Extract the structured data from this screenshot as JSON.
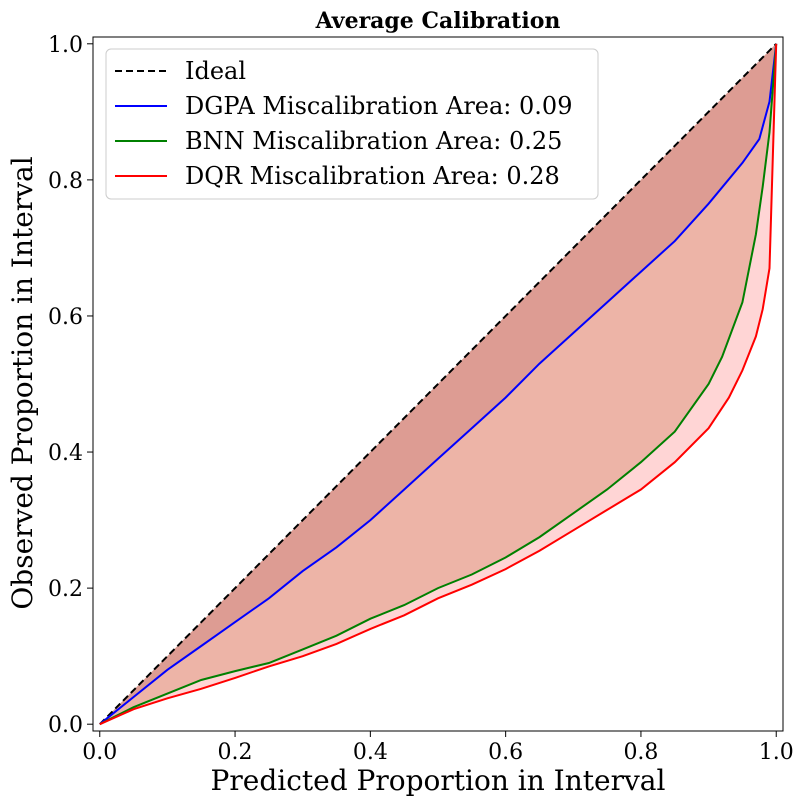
{
  "chart_data": {
    "type": "line",
    "title": "Average Calibration",
    "xlabel": "Predicted Proportion in Interval",
    "ylabel": "Observed Proportion in Interval",
    "xlim": [
      -0.01,
      1.01
    ],
    "ylim": [
      -0.01,
      1.01
    ],
    "xticks": [
      0.0,
      0.2,
      0.4,
      0.6,
      0.8,
      1.0
    ],
    "yticks": [
      0.0,
      0.2,
      0.4,
      0.6,
      0.8,
      1.0
    ],
    "tick_labels": [
      "0.0",
      "0.2",
      "0.4",
      "0.6",
      "0.8",
      "1.0"
    ],
    "grid": false,
    "legend_position": "top-left",
    "fill_between_ideal": true,
    "series": [
      {
        "name": "Ideal",
        "legend": "Ideal",
        "color": "#000000",
        "dash": true,
        "fill": "",
        "x": [
          0.0,
          1.0
        ],
        "y": [
          0.0,
          1.0
        ]
      },
      {
        "name": "DGPA",
        "legend": "DGPA Miscalibration Area: 0.09",
        "color": "#0000ff",
        "dash": false,
        "fill": "#6a2a4c",
        "x": [
          0,
          0.05,
          0.1,
          0.15,
          0.2,
          0.25,
          0.3,
          0.35,
          0.4,
          0.45,
          0.5,
          0.55,
          0.6,
          0.65,
          0.7,
          0.75,
          0.8,
          0.85,
          0.9,
          0.95,
          0.975,
          0.99,
          1.0
        ],
        "y": [
          0,
          0.04,
          0.08,
          0.115,
          0.15,
          0.185,
          0.225,
          0.26,
          0.3,
          0.345,
          0.39,
          0.435,
          0.48,
          0.53,
          0.575,
          0.62,
          0.665,
          0.71,
          0.765,
          0.825,
          0.86,
          0.915,
          1.0
        ]
      },
      {
        "name": "BNN",
        "legend": "BNN Miscalibration Area: 0.25",
        "color": "#008000",
        "dash": false,
        "fill": "#b87a46",
        "x": [
          0,
          0.05,
          0.1,
          0.15,
          0.2,
          0.25,
          0.3,
          0.35,
          0.4,
          0.45,
          0.5,
          0.55,
          0.6,
          0.65,
          0.7,
          0.75,
          0.8,
          0.85,
          0.9,
          0.92,
          0.95,
          0.97,
          0.98,
          0.99,
          1.0
        ],
        "y": [
          0,
          0.025,
          0.045,
          0.065,
          0.078,
          0.09,
          0.11,
          0.13,
          0.155,
          0.175,
          0.2,
          0.22,
          0.245,
          0.275,
          0.31,
          0.345,
          0.385,
          0.43,
          0.5,
          0.54,
          0.62,
          0.72,
          0.79,
          0.87,
          1.0
        ]
      },
      {
        "name": "DQR",
        "legend": "DQR Miscalibration Area: 0.28",
        "color": "#ff0000",
        "dash": false,
        "fill": "#ffb3b3",
        "x": [
          0,
          0.05,
          0.1,
          0.15,
          0.2,
          0.25,
          0.3,
          0.35,
          0.4,
          0.45,
          0.5,
          0.55,
          0.6,
          0.65,
          0.7,
          0.75,
          0.8,
          0.85,
          0.9,
          0.93,
          0.95,
          0.97,
          0.98,
          0.99,
          1.0
        ],
        "y": [
          0,
          0.022,
          0.038,
          0.052,
          0.068,
          0.085,
          0.1,
          0.118,
          0.14,
          0.16,
          0.185,
          0.205,
          0.228,
          0.255,
          0.285,
          0.315,
          0.345,
          0.385,
          0.435,
          0.48,
          0.52,
          0.57,
          0.61,
          0.67,
          1.0
        ]
      }
    ]
  }
}
